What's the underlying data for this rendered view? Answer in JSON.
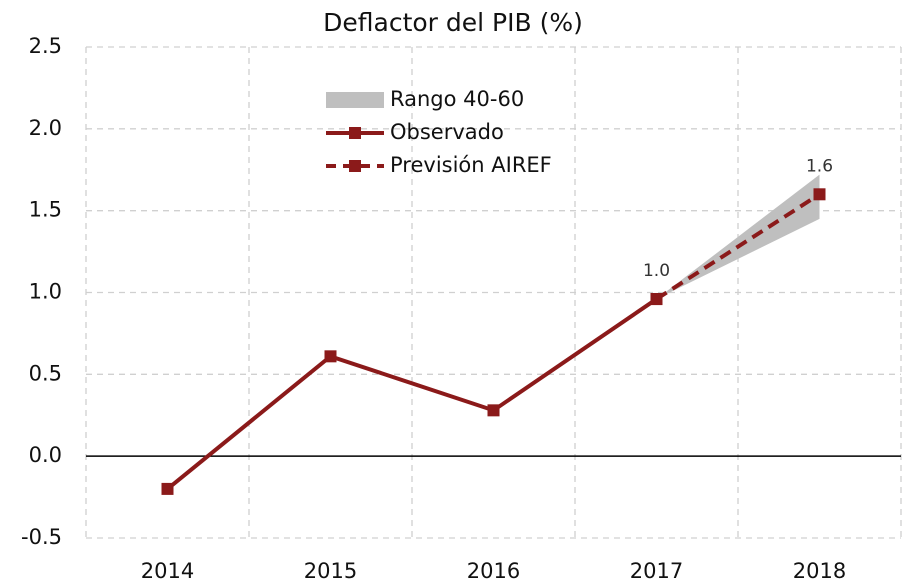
{
  "chart_data": {
    "type": "line",
    "title": "Deflactor del PIB (%)",
    "categories": [
      "2014",
      "2015",
      "2016",
      "2017",
      "2018"
    ],
    "band": {
      "name": "Rango 40-60",
      "color": "#bfbfbf",
      "lower": [
        null,
        null,
        null,
        0.96,
        1.45
      ],
      "upper": [
        null,
        null,
        null,
        0.96,
        1.72
      ]
    },
    "series": [
      {
        "name": "Observado",
        "color": "#8b1a1a",
        "dashed": false,
        "values": [
          -0.2,
          0.61,
          0.28,
          0.96,
          null
        ]
      },
      {
        "name": "Previsión AIREF",
        "color": "#8b1a1a",
        "dashed": true,
        "values": [
          null,
          null,
          null,
          0.96,
          1.6
        ],
        "value_labels": [
          null,
          null,
          null,
          "1.0",
          "1.6"
        ]
      }
    ],
    "ylim": [
      -0.5,
      2.5
    ],
    "yticks": [
      -0.5,
      {
        "value": 0,
        "label": "0.0"
      },
      0.5,
      {
        "value": 1,
        "label": "1.0"
      },
      1.5,
      {
        "value": 2,
        "label": "2.0"
      },
      2.5
    ],
    "grid": true,
    "legend": "top"
  }
}
